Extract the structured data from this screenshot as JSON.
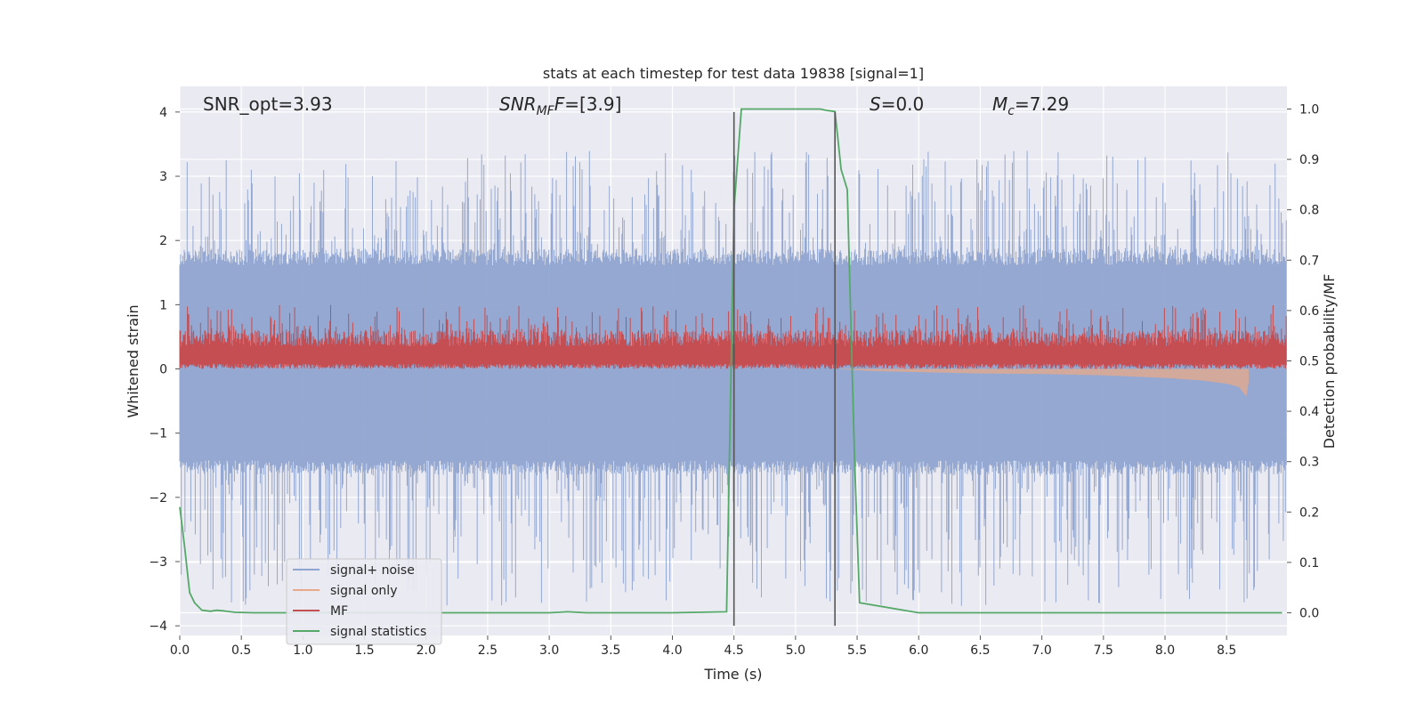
{
  "chart_data": {
    "type": "line",
    "title": "stats at each timestep for test data 19838 [signal=1]",
    "xlabel": "Time (s)",
    "ylabel": "Whitened strain",
    "y2label": "Detection probability/MF",
    "xlim": [
      0,
      8.99
    ],
    "ylim": [
      -4.15,
      4.4
    ],
    "y2lim": [
      -0.045,
      1.045
    ],
    "grid": true,
    "x_ticks": [
      0.0,
      0.5,
      1.0,
      1.5,
      2.0,
      2.5,
      3.0,
      3.5,
      4.0,
      4.5,
      5.0,
      5.5,
      6.0,
      6.5,
      7.0,
      7.5,
      8.0,
      8.5
    ],
    "x_tick_labels": [
      "0.0",
      "0.5",
      "1.0",
      "1.5",
      "2.0",
      "2.5",
      "3.0",
      "3.5",
      "4.0",
      "4.5",
      "5.0",
      "5.5",
      "6.0",
      "6.5",
      "7.0",
      "7.5",
      "8.0",
      "8.5"
    ],
    "y_ticks": [
      4,
      3,
      2,
      1,
      0,
      -1,
      -2,
      -3,
      -4
    ],
    "y_tick_labels": [
      "4",
      "3",
      "2",
      "1",
      "0",
      "−1",
      "−2",
      "−3",
      "−4"
    ],
    "y2_ticks": [
      1.0,
      0.9,
      0.8,
      0.7,
      0.6,
      0.5,
      0.4,
      0.3,
      0.2,
      0.1,
      0.0
    ],
    "y2_tick_labels": [
      "1.0",
      "0.9",
      "0.8",
      "0.7",
      "0.6",
      "0.5",
      "0.4",
      "0.3",
      "0.2",
      "0.1",
      "0.0"
    ],
    "annotations": {
      "snr_opt": "SNR_opt=3.93",
      "snr_mf_main": "SNR",
      "snr_mf_sub": "MF",
      "snr_mf_value": "=[3.9]",
      "s_label": "S",
      "s_value": "=0.0",
      "mc_label": "M",
      "mc_sub": "c",
      "mc_value": "=7.29"
    },
    "vertical_markers": [
      {
        "x": 4.5,
        "y_from": -4.0,
        "y_to": 4.0
      },
      {
        "x": 5.32,
        "y_from": -4.0,
        "y_to": 4.0
      }
    ],
    "legend": {
      "position": "lower-left",
      "entries": [
        {
          "label": "signal+ noise",
          "color": "#8fa4cf"
        },
        {
          "label": "signal only",
          "color": "#e8a98a"
        },
        {
          "label": "MF",
          "color": "#c44e52"
        },
        {
          "label": "signal statistics",
          "color": "#55a868"
        }
      ]
    },
    "series": [
      {
        "name": "signal+ noise",
        "axis": "left",
        "style": "dense_noise",
        "sample_rate_hz": 1000,
        "envelope_typical": [
          -1.5,
          1.7
        ],
        "envelope_peak": [
          -3.7,
          3.4
        ],
        "color": "#8fa4cf"
      },
      {
        "name": "signal only",
        "axis": "left",
        "x": [
          5.32,
          5.6,
          6.0,
          6.5,
          7.0,
          7.5,
          8.0,
          8.3,
          8.5,
          8.6,
          8.66,
          8.68
        ],
        "lower": [
          0.0,
          -0.03,
          -0.05,
          -0.07,
          -0.08,
          -0.1,
          -0.14,
          -0.18,
          -0.23,
          -0.28,
          -0.43,
          -0.2
        ],
        "upper": [
          0.0,
          0.0,
          0.0,
          0.0,
          0.0,
          0.0,
          0.0,
          0.0,
          0.0,
          0.0,
          0.0,
          0.0
        ],
        "color": "#e8a98a"
      },
      {
        "name": "MF",
        "axis": "left",
        "style": "dense_noise",
        "range": [
          0.0,
          1.0
        ],
        "typical": [
          0.1,
          0.6
        ],
        "color": "#c44e52"
      },
      {
        "name": "signal statistics",
        "axis": "right",
        "x": [
          0.0,
          0.04,
          0.08,
          0.12,
          0.18,
          0.25,
          0.3,
          0.35,
          0.45,
          0.6,
          1.0,
          2.0,
          3.0,
          3.15,
          3.3,
          4.0,
          4.44,
          4.5,
          4.56,
          4.7,
          5.0,
          5.2,
          5.26,
          5.32,
          5.37,
          5.42,
          5.48,
          5.52,
          6.0,
          7.0,
          8.0,
          8.95
        ],
        "y": [
          0.21,
          0.13,
          0.04,
          0.02,
          0.005,
          0.003,
          0.005,
          0.004,
          0.001,
          0.0,
          0.0,
          0.0,
          0.0,
          0.002,
          0.0,
          0.0,
          0.002,
          0.8,
          1.0,
          1.0,
          1.0,
          1.0,
          0.997,
          0.995,
          0.88,
          0.84,
          0.3,
          0.02,
          0.0,
          0.0,
          0.0,
          0.0
        ],
        "color": "#55a868"
      }
    ]
  }
}
